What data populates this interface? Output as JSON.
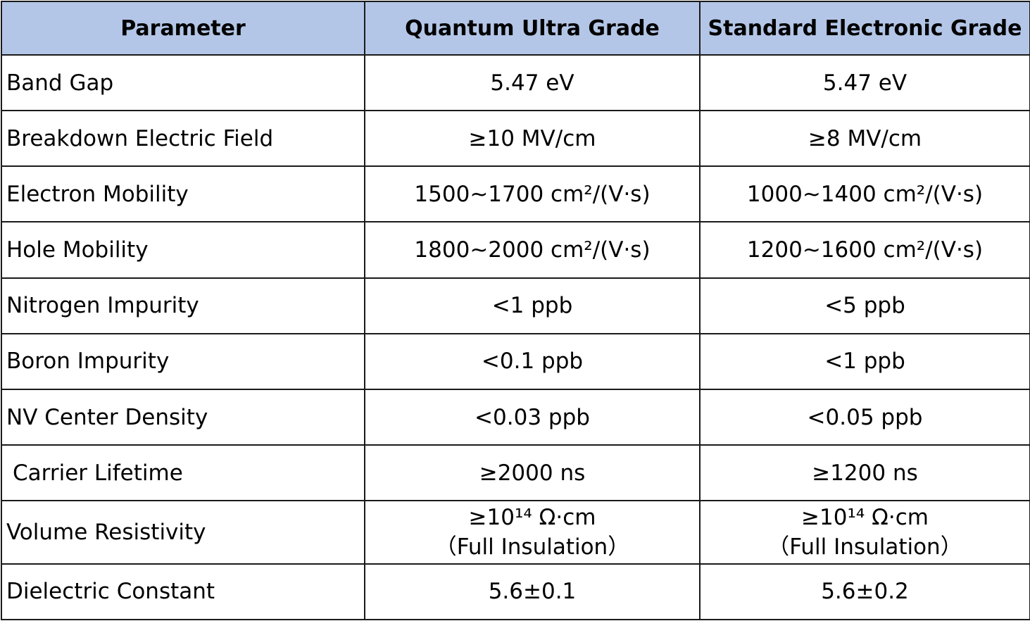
{
  "colors": {
    "header_bg": "#b4c6e7",
    "border": "#1a1a1a",
    "text": "#000000",
    "body_bg": "#ffffff"
  },
  "table": {
    "headers": [
      "Parameter",
      "Quantum Ultra Grade",
      "Standard Electronic Grade"
    ],
    "rows": [
      {
        "parameter": "Band Gap",
        "quantum": "5.47 eV",
        "standard": "5.47 eV"
      },
      {
        "parameter": "Breakdown Electric Field",
        "quantum": "≥10 MV/cm",
        "standard": "≥8 MV/cm"
      },
      {
        "parameter": "Electron Mobility",
        "quantum": "1500~1700 cm²/(V·s)",
        "standard": "1000~1400 cm²/(V·s)"
      },
      {
        "parameter": "Hole Mobility",
        "quantum": "1800~2000 cm²/(V·s)",
        "standard": "1200~1600 cm²/(V·s)"
      },
      {
        "parameter": "Nitrogen Impurity",
        "quantum": "<1 ppb",
        "standard": "<5 ppb"
      },
      {
        "parameter": "Boron Impurity",
        "quantum": "<0.1 ppb",
        "standard": "<1 ppb"
      },
      {
        "parameter": "NV Center Density",
        "quantum": "<0.03 ppb",
        "standard": "<0.05 ppb"
      },
      {
        "parameter": "Carrier Lifetime",
        "quantum": "≥2000 ns",
        "standard": "≥1200 ns"
      },
      {
        "parameter": "Volume Resistivity",
        "quantum_line1": "≥10¹⁴ Ω·cm",
        "quantum_line2": "（Full Insulation）",
        "standard_line1": "≥10¹⁴ Ω·cm",
        "standard_line2": "（Full Insulation）"
      },
      {
        "parameter": "Dielectric Constant",
        "quantum": "5.6±0.1",
        "standard": "5.6±0.2"
      }
    ]
  }
}
